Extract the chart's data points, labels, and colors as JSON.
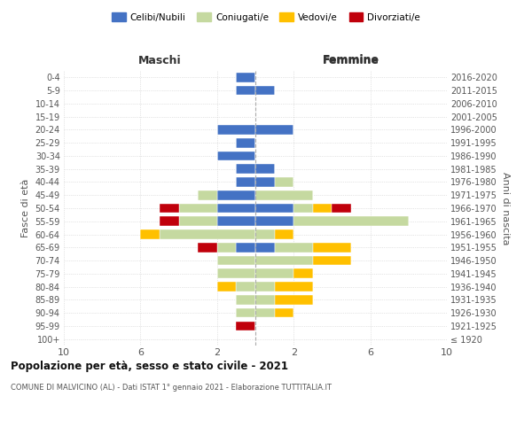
{
  "age_groups": [
    "100+",
    "95-99",
    "90-94",
    "85-89",
    "80-84",
    "75-79",
    "70-74",
    "65-69",
    "60-64",
    "55-59",
    "50-54",
    "45-49",
    "40-44",
    "35-39",
    "30-34",
    "25-29",
    "20-24",
    "15-19",
    "10-14",
    "5-9",
    "0-4"
  ],
  "birth_years": [
    "≤ 1920",
    "1921-1925",
    "1926-1930",
    "1931-1935",
    "1936-1940",
    "1941-1945",
    "1946-1950",
    "1951-1955",
    "1956-1960",
    "1961-1965",
    "1966-1970",
    "1971-1975",
    "1976-1980",
    "1981-1985",
    "1986-1990",
    "1991-1995",
    "1996-2000",
    "2001-2005",
    "2006-2010",
    "2011-2015",
    "2016-2020"
  ],
  "male": {
    "celibi": [
      0,
      0,
      0,
      0,
      0,
      0,
      0,
      1,
      0,
      2,
      2,
      2,
      1,
      1,
      2,
      1,
      2,
      0,
      0,
      1,
      1
    ],
    "coniugati": [
      0,
      0,
      1,
      1,
      1,
      2,
      2,
      1,
      5,
      2,
      2,
      1,
      0,
      0,
      0,
      0,
      0,
      0,
      0,
      0,
      0
    ],
    "vedovi": [
      0,
      0,
      0,
      0,
      1,
      0,
      0,
      0,
      1,
      0,
      0,
      0,
      0,
      0,
      0,
      0,
      0,
      0,
      0,
      0,
      0
    ],
    "divorziati": [
      0,
      1,
      0,
      0,
      0,
      0,
      0,
      1,
      0,
      1,
      1,
      0,
      0,
      0,
      0,
      0,
      0,
      0,
      0,
      0,
      0
    ]
  },
  "female": {
    "nubili": [
      0,
      0,
      0,
      0,
      0,
      0,
      0,
      1,
      0,
      2,
      2,
      0,
      1,
      1,
      0,
      0,
      2,
      0,
      0,
      1,
      0
    ],
    "coniugate": [
      0,
      0,
      1,
      1,
      1,
      2,
      3,
      2,
      1,
      6,
      1,
      3,
      1,
      0,
      0,
      0,
      0,
      0,
      0,
      0,
      0
    ],
    "vedove": [
      0,
      0,
      1,
      2,
      2,
      1,
      2,
      2,
      1,
      0,
      1,
      0,
      0,
      0,
      0,
      0,
      0,
      0,
      0,
      0,
      0
    ],
    "divorziate": [
      0,
      0,
      0,
      0,
      0,
      0,
      0,
      0,
      0,
      0,
      1,
      0,
      0,
      0,
      0,
      0,
      0,
      0,
      0,
      0,
      0
    ]
  },
  "colors": {
    "celibi": "#4472c4",
    "coniugati": "#c5d9a0",
    "vedovi": "#ffc000",
    "divorziati": "#c0000b"
  },
  "title": "Popolazione per età, sesso e stato civile - 2021",
  "subtitle": "COMUNE DI MALVICINO (AL) - Dati ISTAT 1° gennaio 2021 - Elaborazione TUTTITALIA.IT",
  "xlabel_left": "Maschi",
  "xlabel_right": "Femmine",
  "ylabel_left": "Fasce di età",
  "ylabel_right": "Anni di nascita",
  "xlim": 10,
  "xticks": [
    -10,
    -6,
    -2,
    2,
    6,
    10
  ],
  "xtick_labels": [
    "10",
    "6",
    "2",
    "2",
    "6",
    "10"
  ],
  "legend_labels": [
    "Celibi/Nubili",
    "Coniugati/e",
    "Vedovi/e",
    "Divorziati/e"
  ],
  "background_color": "#ffffff",
  "grid_color": "#cccccc",
  "text_color": "#555555"
}
